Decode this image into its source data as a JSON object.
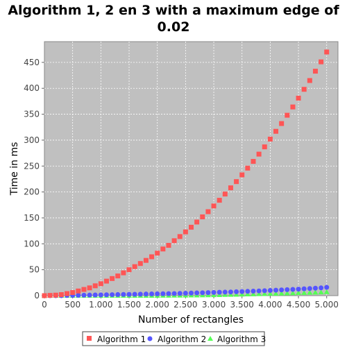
{
  "chart_data": {
    "type": "scatter",
    "title_lines": [
      "Algorithm 1, 2 en 3 with a maximum edge of",
      "0.02"
    ],
    "xlabel": "Number of rectangles",
    "ylabel": "Time in ms",
    "xlim": [
      0,
      5200
    ],
    "ylim": [
      0,
      490
    ],
    "x_ticks": [
      {
        "value": 0,
        "label": "0"
      },
      {
        "value": 500,
        "label": "500"
      },
      {
        "value": 1000,
        "label": "1.000"
      },
      {
        "value": 1500,
        "label": "1.500"
      },
      {
        "value": 2000,
        "label": "2.000"
      },
      {
        "value": 2500,
        "label": "2.500"
      },
      {
        "value": 3000,
        "label": "3.000"
      },
      {
        "value": 3500,
        "label": "3.500"
      },
      {
        "value": 4000,
        "label": "4.000"
      },
      {
        "value": 4500,
        "label": "4.500"
      },
      {
        "value": 5000,
        "label": "5.000"
      }
    ],
    "y_ticks": [
      {
        "value": 0,
        "label": "0"
      },
      {
        "value": 50,
        "label": "50"
      },
      {
        "value": 100,
        "label": "100"
      },
      {
        "value": 150,
        "label": "150"
      },
      {
        "value": 200,
        "label": "200"
      },
      {
        "value": 250,
        "label": "250"
      },
      {
        "value": 300,
        "label": "300"
      },
      {
        "value": 350,
        "label": "350"
      },
      {
        "value": 400,
        "label": "400"
      },
      {
        "value": 450,
        "label": "450"
      }
    ],
    "grid": true,
    "legend_position": "bottom",
    "plot_background": "#c0c0c0",
    "series": [
      {
        "name": "Algorithm 1",
        "color": "#ff5555",
        "marker": "square",
        "x": [
          0,
          100,
          200,
          300,
          400,
          500,
          600,
          700,
          800,
          900,
          1000,
          1100,
          1200,
          1300,
          1400,
          1500,
          1600,
          1700,
          1800,
          1900,
          2000,
          2100,
          2200,
          2300,
          2400,
          2500,
          2600,
          2700,
          2800,
          2900,
          3000,
          3100,
          3200,
          3300,
          3400,
          3500,
          3600,
          3700,
          3800,
          3900,
          4000,
          4100,
          4200,
          4300,
          4400,
          4500,
          4600,
          4700,
          4800,
          4900,
          5000
        ],
        "y": [
          0,
          0.5,
          1,
          2,
          4,
          6,
          9,
          12,
          15,
          19,
          23,
          28,
          33,
          38,
          44,
          50,
          56,
          62,
          68,
          75,
          82,
          90,
          97,
          106,
          114,
          123,
          132,
          142,
          152,
          162,
          173,
          184,
          196,
          208,
          220,
          233,
          246,
          259,
          273,
          287,
          302,
          317,
          332,
          348,
          364,
          381,
          398,
          415,
          433,
          451,
          470
        ]
      },
      {
        "name": "Algorithm 2",
        "color": "#5555ff",
        "marker": "circle",
        "x": [
          0,
          100,
          200,
          300,
          400,
          500,
          600,
          700,
          800,
          900,
          1000,
          1100,
          1200,
          1300,
          1400,
          1500,
          1600,
          1700,
          1800,
          1900,
          2000,
          2100,
          2200,
          2300,
          2400,
          2500,
          2600,
          2700,
          2800,
          2900,
          3000,
          3100,
          3200,
          3300,
          3400,
          3500,
          3600,
          3700,
          3800,
          3900,
          4000,
          4100,
          4200,
          4300,
          4400,
          4500,
          4600,
          4700,
          4800,
          4900,
          5000
        ],
        "y": [
          0,
          0,
          0,
          0,
          0.3,
          0.5,
          0.7,
          0.9,
          1.1,
          1.3,
          1.5,
          1.7,
          1.9,
          2.1,
          2.3,
          2.5,
          2.7,
          2.9,
          3.1,
          3.3,
          3.5,
          3.7,
          3.9,
          4.1,
          4.4,
          4.7,
          5,
          5.3,
          5.6,
          5.9,
          6.2,
          6.5,
          6.8,
          7.1,
          7.5,
          7.9,
          8.3,
          8.7,
          9.1,
          9.5,
          10,
          10.5,
          11,
          11.5,
          12,
          12.6,
          13.2,
          13.8,
          14.4,
          15,
          16
        ]
      },
      {
        "name": "Algorithm 3",
        "color": "#55ff55",
        "marker": "triangle",
        "x": [
          0,
          100,
          200,
          300,
          400,
          500,
          600,
          700,
          800,
          900,
          1000,
          1100,
          1200,
          1300,
          1400,
          1500,
          1600,
          1700,
          1800,
          1900,
          2000,
          2100,
          2200,
          2300,
          2400,
          2500,
          2600,
          2700,
          2800,
          2900,
          3000,
          3100,
          3200,
          3300,
          3400,
          3500,
          3600,
          3700,
          3800,
          3900,
          4000,
          4100,
          4200,
          4300,
          4400,
          4500,
          4600,
          4700,
          4800,
          4900,
          5000
        ],
        "y": [
          0,
          0,
          0,
          0,
          0,
          0,
          0,
          0,
          0,
          0,
          0,
          0,
          0,
          0,
          0,
          0,
          0,
          0,
          0,
          0,
          0,
          0.1,
          0.2,
          0.3,
          0.4,
          0.5,
          0.6,
          0.7,
          0.8,
          1,
          1.2,
          1.4,
          1.6,
          1.8,
          2,
          2.3,
          2.6,
          2.9,
          3.2,
          3.5,
          3.8,
          4.1,
          4.4,
          4.7,
          5,
          5.3,
          5.6,
          5.9,
          6.2,
          6.5,
          7
        ]
      }
    ]
  }
}
